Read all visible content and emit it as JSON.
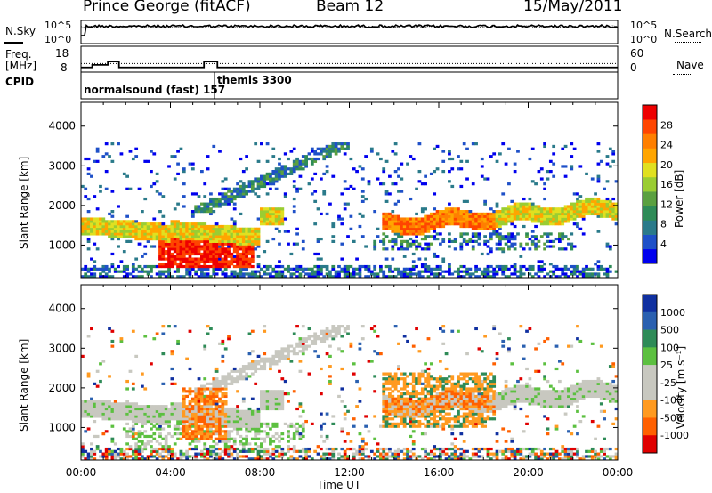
{
  "header": {
    "station": "Prince George (fitACF)",
    "beam": "Beam 12",
    "date": "15/May/2011"
  },
  "left_labels": {
    "nsky": "N.Sky",
    "freq": "Freq.",
    "freq_unit": "[MHz]",
    "cpid": "CPID"
  },
  "right_labels": {
    "nsearch": "N.Search",
    "nave": "Nave"
  },
  "cpid_programs": [
    {
      "name": "normalsound (fast) 157",
      "start_hour": 0
    },
    {
      "name": "themis 3300",
      "start_hour": 6
    }
  ],
  "palettes": {
    "power": [
      "#0000ee",
      "#1e50c8",
      "#2a7a8a",
      "#2e8b57",
      "#5aa040",
      "#9acd32",
      "#e0e020",
      "#ffa500",
      "#ff7f00",
      "#ff4500",
      "#ee0000"
    ],
    "velocity": [
      "#1030a0",
      "#2a60b0",
      "#2e8b57",
      "#5cc040",
      "#c8c8c0",
      "#c8c8c0",
      "#ff9a20",
      "#ff6000",
      "#e00000"
    ]
  },
  "chart_data": [
    {
      "type": "line",
      "name": "noise",
      "left_ticks": [
        "10^5",
        "10^0"
      ],
      "right_ticks": [
        "10^5",
        "10^0"
      ],
      "series": [
        {
          "name": "N.Sky",
          "style": "solid",
          "level": "≈10^4 (near top)"
        },
        {
          "name": "N.Search",
          "style": "dotted",
          "level": "≈10^4"
        }
      ]
    },
    {
      "type": "line",
      "name": "frequency",
      "left_ticks": [
        "18",
        "8"
      ],
      "right_ticks": [
        "60",
        "0"
      ],
      "series": [
        {
          "name": "Freq.",
          "unit": "MHz",
          "style": "solid",
          "steps": [
            [
              0,
              10.5
            ],
            [
              0.5,
              11.5
            ],
            [
              1.2,
              12.8
            ],
            [
              1.7,
              10.5
            ],
            [
              5.5,
              12.8
            ],
            [
              6.1,
              10.5
            ],
            [
              24,
              10.5
            ]
          ]
        },
        {
          "name": "Nave",
          "style": "dotted",
          "level": 20
        }
      ]
    },
    {
      "type": "heatmap",
      "name": "power",
      "ylabel": "Slant Range [km]",
      "ylim": [
        180,
        4600
      ],
      "yticks": [
        1000,
        2000,
        3000,
        4000
      ],
      "colorbar": {
        "label": "Power [dB]",
        "ticks": [
          4,
          8,
          12,
          16,
          20,
          24,
          28
        ]
      },
      "features": [
        {
          "x": [
            0,
            24
          ],
          "y": [
            1300,
            1750
          ],
          "level": "12-24 dB",
          "desc": "main F-region echo band"
        },
        {
          "x": [
            3.5,
            7.8
          ],
          "y": [
            450,
            1400
          ],
          "level": ">28 dB"
        },
        {
          "x": [
            13.5,
            18.5
          ],
          "y": [
            1400,
            2100
          ],
          "level": "24-28 dB"
        },
        {
          "x": [
            0,
            24
          ],
          "y": [
            200,
            500
          ],
          "level": "4-12 dB",
          "desc": "near-range ground/E clutter"
        }
      ]
    },
    {
      "type": "heatmap",
      "name": "velocity",
      "ylabel": "Slant Range [km]",
      "xlabel": "Time UT",
      "ylim": [
        180,
        4600
      ],
      "yticks": [
        1000,
        2000,
        3000,
        4000
      ],
      "xticks": [
        "00:00",
        "04:00",
        "08:00",
        "12:00",
        "16:00",
        "20:00",
        "00:00"
      ],
      "colorbar": {
        "label": "Velocity [m s⁻¹]",
        "ticks": [
          1000,
          500,
          100,
          25,
          -25,
          -100,
          -500,
          -1000
        ]
      },
      "features": [
        {
          "x": [
            0,
            24
          ],
          "y": [
            1200,
            1750
          ],
          "level": "-25..25 (ground scatter)"
        },
        {
          "x": [
            4.5,
            6.5
          ],
          "y": [
            700,
            2000
          ],
          "level": "-100..-500"
        },
        {
          "x": [
            13.5,
            18.5
          ],
          "y": [
            1000,
            2400
          ],
          "level": "-100..-500"
        }
      ]
    }
  ]
}
